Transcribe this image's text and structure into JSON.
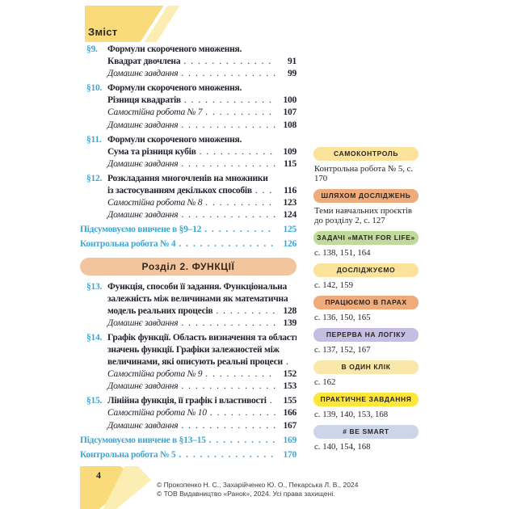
{
  "header": {
    "label": "Зміст"
  },
  "colors": {
    "accent_blue": "#3ba6d5",
    "shape_yellow": "#f9db7c",
    "shape_light_yellow": "#fceeb2",
    "banner_bg": "#f2c59f",
    "badge_yellow": "#fbe39c",
    "badge_orange": "#efab7a",
    "badge_green": "#c0da9b",
    "badge_lavender": "#c5bde2",
    "badge_pale_yellow": "#fae8ab",
    "badge_bright_yellow": "#ffe63a",
    "badge_light_blue": "#ccd5ea"
  },
  "toc": {
    "chapter_banner": "Розділ 2. ФУНКЦІЇ",
    "rows": [
      {
        "num": "§9.",
        "text": "Формули скороченого множення.",
        "style": "bold",
        "page": ""
      },
      {
        "num": "",
        "text": "Квадрат двочлена",
        "style": "bold",
        "page": "91"
      },
      {
        "num": "",
        "text": "Домашнє завдання",
        "style": "italic",
        "page": "99"
      },
      {
        "num": "§10.",
        "text": "Формули скороченого множення.",
        "style": "bold",
        "page": ""
      },
      {
        "num": "",
        "text": "Різниця квадратів",
        "style": "bold",
        "page": "100"
      },
      {
        "num": "",
        "text": "Самостійна робота № 7",
        "style": "italic",
        "page": "107"
      },
      {
        "num": "",
        "text": "Домашнє завдання",
        "style": "italic",
        "page": "108"
      },
      {
        "num": "§11.",
        "text": "Формули скороченого множення.",
        "style": "bold",
        "page": ""
      },
      {
        "num": "",
        "text": "Сума та різниця кубів",
        "style": "bold",
        "page": "109"
      },
      {
        "num": "",
        "text": "Домашнє завдання",
        "style": "italic",
        "page": "115"
      },
      {
        "num": "§12.",
        "text": "Розкладання многочленів на множники",
        "style": "bold",
        "page": ""
      },
      {
        "num": "",
        "text": "із застосуванням декількох способів",
        "style": "bold",
        "page": "116"
      },
      {
        "num": "",
        "text": "Самостійна робота № 8",
        "style": "italic",
        "page": "123"
      },
      {
        "num": "",
        "text": "Домашнє завдання",
        "style": "italic",
        "page": "124"
      },
      {
        "num": "",
        "text": "Підсумовуємо вивчене в §9–12",
        "style": "blue",
        "page": "125"
      },
      {
        "num": "",
        "text": "Контрольна робота № 4",
        "style": "blue",
        "page": "126"
      },
      {
        "num": "§13.",
        "text": "Функція, способи її задання. Функціональна",
        "style": "bold",
        "page": ""
      },
      {
        "num": "",
        "text": "залежність між величинами як математична",
        "style": "bold",
        "page": ""
      },
      {
        "num": "",
        "text": "модель реальних процесів",
        "style": "bold",
        "page": "128"
      },
      {
        "num": "",
        "text": "Домашнє завдання",
        "style": "italic",
        "page": "139"
      },
      {
        "num": "§14.",
        "text": "Графік функції. Область визначення та область",
        "style": "bold",
        "page": ""
      },
      {
        "num": "",
        "text": "значень функції. Графіки залежностей між",
        "style": "bold",
        "page": ""
      },
      {
        "num": "",
        "text": "величинами, які описують реальні процеси",
        "style": "bold",
        "page": "141"
      },
      {
        "num": "",
        "text": "Самостійна робота № 9",
        "style": "italic",
        "page": "152"
      },
      {
        "num": "",
        "text": "Домашнє завдання",
        "style": "italic",
        "page": "153"
      },
      {
        "num": "§15.",
        "text": "Лінійна функція, її графік і властивості",
        "style": "bold",
        "page": "155"
      },
      {
        "num": "",
        "text": "Самостійна робота № 10",
        "style": "italic",
        "page": "166"
      },
      {
        "num": "",
        "text": "Домашнє завдання",
        "style": "italic",
        "page": "167"
      },
      {
        "num": "",
        "text": "Підсумовуємо вивчене в §13–15",
        "style": "blue",
        "page": "169"
      },
      {
        "num": "",
        "text": "Контрольна робота № 5",
        "style": "blue",
        "page": "170"
      }
    ]
  },
  "sidebar": {
    "items": [
      {
        "label": "САМОКОНТРОЛЬ",
        "color": "#fbe39c",
        "ref": "Контрольна робота № 5, с. 170"
      },
      {
        "label": "ШЛЯХОМ ДОСЛІДЖЕНЬ",
        "color": "#efab7a",
        "ref": "Теми навчальних проєктів до розділу 2, с. 127"
      },
      {
        "label": "ЗАДАЧІ «MATH FOR LIFE»",
        "color": "#c0da9b",
        "ref": "с. 138, 151, 164"
      },
      {
        "label": "ДОСЛІДЖУЄМО",
        "color": "#fbe39c",
        "ref": "с. 142, 159"
      },
      {
        "label": "ПРАЦЮЄМО В ПАРАХ",
        "color": "#efab7a",
        "ref": "с. 136, 150, 165"
      },
      {
        "label": "ПЕРЕРВА НА ЛОГІКУ",
        "color": "#c5bde2",
        "ref": "с. 137, 152, 167"
      },
      {
        "label": "В ОДИН КЛІК",
        "color": "#fae8ab",
        "ref": "с. 162"
      },
      {
        "label": "ПРАКТИЧНЕ ЗАВДАННЯ",
        "color": "#ffe63a",
        "ref": "с. 139, 140, 153, 168"
      },
      {
        "label": "# BE SMART",
        "color": "#ccd5ea",
        "ref": "с. 140, 154, 168"
      }
    ]
  },
  "footer": {
    "page_number": "4",
    "copyright_line1": "© Прокопенко Н. С., Захарійченко Ю. О., Пекарська Л. В., 2024",
    "copyright_line2": "© ТОВ Видавництво «Ранок», 2024. Усі права захищені."
  }
}
